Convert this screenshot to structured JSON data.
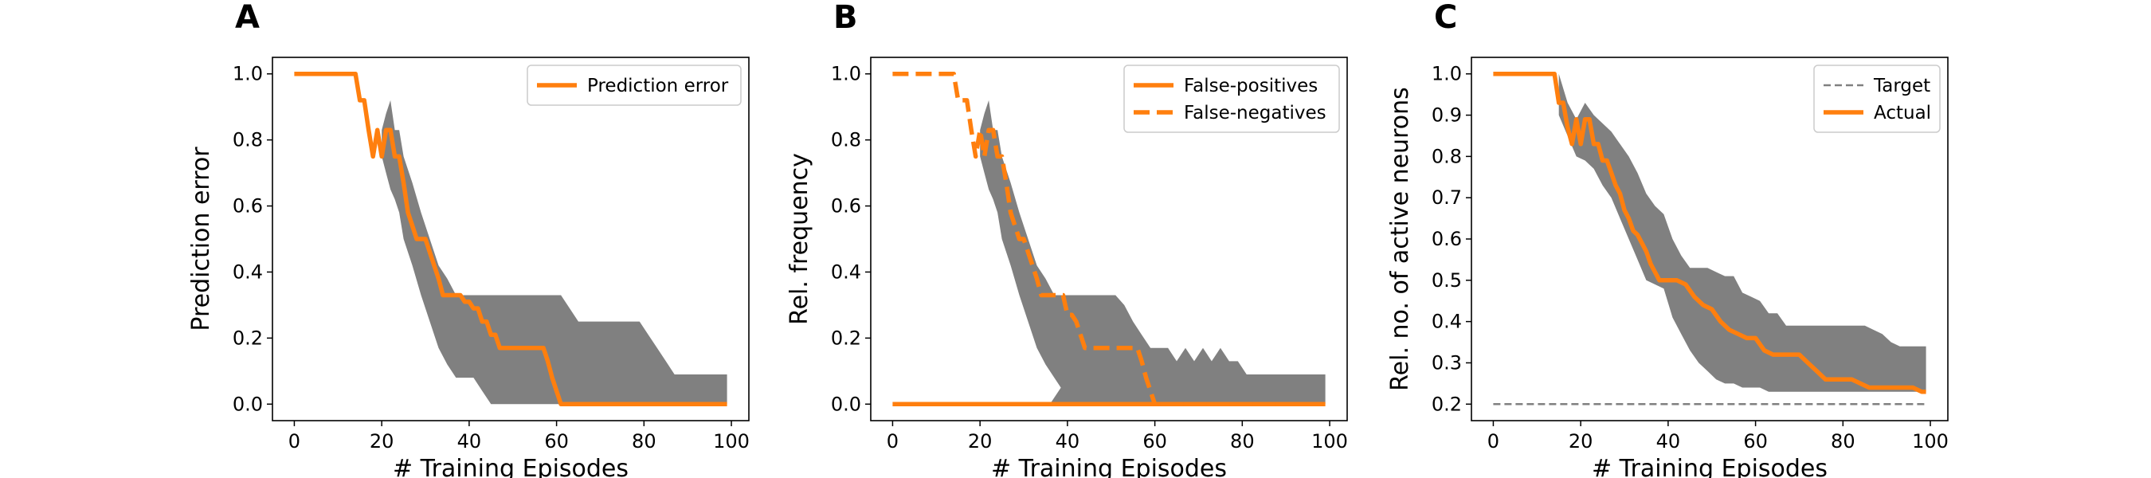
{
  "colors": {
    "orange": "#ff7f0e",
    "band": "#808080",
    "target": "#808080"
  },
  "chart_data": [
    {
      "panel": "A",
      "type": "line",
      "xlabel": "# Training Episodes",
      "ylabel": "Prediction error",
      "xlim": [
        -5,
        104
      ],
      "ylim": [
        -0.05,
        1.05
      ],
      "xticks": [
        0,
        20,
        40,
        60,
        80,
        100
      ],
      "xtick_labels": [
        "0",
        "20",
        "40",
        "60",
        "80",
        "100"
      ],
      "yticks": [
        0.0,
        0.2,
        0.4,
        0.6,
        0.8,
        1.0
      ],
      "ytick_labels": [
        "0.0",
        "0.2",
        "0.4",
        "0.6",
        "0.8",
        "1.0"
      ],
      "legend": {
        "position": "top-right"
      },
      "series": [
        {
          "name": "Prediction error",
          "style": "solid",
          "x": [
            0,
            14,
            15,
            16,
            17,
            18,
            19,
            20,
            21,
            22,
            23,
            24,
            25,
            26,
            27,
            28,
            29,
            30,
            31,
            32,
            33,
            34,
            35,
            36,
            37,
            38,
            39,
            40,
            41,
            42,
            43,
            44,
            45,
            46,
            47,
            48,
            49,
            50,
            51,
            52,
            53,
            54,
            55,
            56,
            57,
            58,
            59,
            60,
            61,
            62,
            63,
            70,
            80,
            90,
            99
          ],
          "y": [
            1.0,
            1.0,
            0.92,
            0.92,
            0.83,
            0.75,
            0.83,
            0.75,
            0.83,
            0.83,
            0.75,
            0.75,
            0.67,
            0.58,
            0.54,
            0.5,
            0.5,
            0.5,
            0.46,
            0.42,
            0.38,
            0.33,
            0.33,
            0.33,
            0.33,
            0.33,
            0.31,
            0.31,
            0.29,
            0.29,
            0.25,
            0.25,
            0.21,
            0.21,
            0.17,
            0.17,
            0.17,
            0.17,
            0.17,
            0.17,
            0.17,
            0.17,
            0.17,
            0.17,
            0.17,
            0.13,
            0.08,
            0.04,
            0.0,
            0.0,
            0.0,
            0.0,
            0.0,
            0.0,
            0.0
          ]
        }
      ],
      "band": {
        "x": [
          20,
          21,
          22,
          23,
          24,
          25,
          27,
          29,
          31,
          33,
          35,
          37,
          39,
          41,
          43,
          45,
          47,
          49,
          51,
          53,
          55,
          57,
          59,
          61,
          63,
          65,
          67,
          69,
          71,
          73,
          75,
          77,
          79,
          81,
          83,
          85,
          87,
          89,
          91,
          93,
          95,
          97,
          99
        ],
        "lower": [
          0.75,
          0.7,
          0.65,
          0.62,
          0.58,
          0.5,
          0.42,
          0.33,
          0.25,
          0.17,
          0.12,
          0.08,
          0.08,
          0.08,
          0.04,
          0.0,
          0.0,
          0.0,
          0.0,
          0.0,
          0.0,
          0.0,
          0.0,
          0.0,
          0.0,
          0.0,
          0.0,
          0.0,
          0.0,
          0.0,
          0.0,
          0.0,
          0.0,
          0.0,
          0.0,
          0.0,
          0.0,
          0.0,
          0.0,
          0.0,
          0.0,
          0.0,
          0.0
        ],
        "upper": [
          0.83,
          0.88,
          0.92,
          0.83,
          0.83,
          0.75,
          0.67,
          0.58,
          0.5,
          0.42,
          0.38,
          0.33,
          0.33,
          0.33,
          0.33,
          0.33,
          0.33,
          0.33,
          0.33,
          0.33,
          0.33,
          0.33,
          0.33,
          0.33,
          0.29,
          0.25,
          0.25,
          0.25,
          0.25,
          0.25,
          0.25,
          0.25,
          0.25,
          0.21,
          0.17,
          0.13,
          0.09,
          0.09,
          0.09,
          0.09,
          0.09,
          0.09,
          0.09
        ]
      }
    },
    {
      "panel": "B",
      "type": "line",
      "xlabel": "# Training Episodes",
      "ylabel": "Rel. frequency",
      "xlim": [
        -5,
        104
      ],
      "ylim": [
        -0.05,
        1.05
      ],
      "xticks": [
        0,
        20,
        40,
        60,
        80,
        100
      ],
      "xtick_labels": [
        "0",
        "20",
        "40",
        "60",
        "80",
        "100"
      ],
      "yticks": [
        0.0,
        0.2,
        0.4,
        0.6,
        0.8,
        1.0
      ],
      "ytick_labels": [
        "0.0",
        "0.2",
        "0.4",
        "0.6",
        "0.8",
        "1.0"
      ],
      "legend": {
        "position": "top-right"
      },
      "series": [
        {
          "name": "False-positives",
          "style": "solid",
          "x": [
            0,
            99
          ],
          "y": [
            0.0,
            0.0
          ]
        },
        {
          "name": "False-negatives",
          "style": "dashed",
          "x": [
            0,
            14,
            15,
            16,
            17,
            18,
            19,
            20,
            21,
            22,
            23,
            24,
            25,
            26,
            27,
            28,
            29,
            30,
            31,
            32,
            33,
            34,
            35,
            36,
            37,
            38,
            39,
            40,
            41,
            42,
            43,
            44,
            45,
            46,
            47,
            48,
            49,
            50,
            51,
            52,
            53,
            54,
            55,
            56,
            57,
            58,
            59,
            60,
            70,
            80,
            99
          ],
          "y": [
            1.0,
            1.0,
            0.92,
            0.92,
            0.92,
            0.83,
            0.75,
            0.83,
            0.75,
            0.83,
            0.83,
            0.75,
            0.75,
            0.67,
            0.58,
            0.54,
            0.5,
            0.5,
            0.46,
            0.42,
            0.38,
            0.33,
            0.33,
            0.33,
            0.33,
            0.33,
            0.33,
            0.27,
            0.27,
            0.25,
            0.21,
            0.17,
            0.17,
            0.17,
            0.17,
            0.17,
            0.17,
            0.17,
            0.17,
            0.17,
            0.17,
            0.17,
            0.17,
            0.17,
            0.13,
            0.08,
            0.04,
            0.0,
            0.0,
            0.0,
            0.0
          ]
        }
      ],
      "band": {
        "x": [
          20,
          21,
          22,
          23,
          24,
          25,
          27,
          29,
          31,
          33,
          35,
          37,
          39,
          41,
          43,
          45,
          47,
          49,
          51,
          53,
          55,
          57,
          59,
          61,
          63,
          65,
          67,
          69,
          71,
          73,
          75,
          77,
          79,
          81,
          83,
          85,
          87,
          89,
          91,
          93,
          95,
          97,
          99
        ],
        "lower": [
          0.75,
          0.7,
          0.65,
          0.62,
          0.58,
          0.5,
          0.42,
          0.33,
          0.25,
          0.17,
          0.12,
          0.08,
          0.04,
          0.0,
          0.0,
          0.0,
          0.0,
          0.0,
          0.0,
          0.0,
          0.0,
          0.0,
          0.0,
          0.0,
          0.0,
          0.0,
          0.0,
          0.0,
          0.0,
          0.0,
          0.0,
          0.0,
          0.0,
          0.0,
          0.0,
          0.0,
          0.0,
          0.0,
          0.0,
          0.0,
          0.0,
          0.0,
          0.0
        ],
        "upper": [
          0.83,
          0.88,
          0.92,
          0.83,
          0.83,
          0.75,
          0.67,
          0.58,
          0.5,
          0.42,
          0.38,
          0.33,
          0.33,
          0.33,
          0.33,
          0.33,
          0.33,
          0.33,
          0.33,
          0.3,
          0.25,
          0.21,
          0.17,
          0.17,
          0.17,
          0.13,
          0.17,
          0.13,
          0.17,
          0.13,
          0.17,
          0.13,
          0.13,
          0.09,
          0.09,
          0.09,
          0.09,
          0.09,
          0.09,
          0.09,
          0.09,
          0.09,
          0.09
        ]
      },
      "band_lower_right": {
        "x": [
          36,
          38,
          40,
          42,
          44,
          46,
          48,
          50,
          52,
          54,
          56,
          58,
          60,
          62,
          64,
          66,
          68,
          70,
          72,
          74,
          76,
          78,
          80,
          82,
          84,
          86,
          88,
          90,
          92,
          94,
          96,
          98,
          99
        ],
        "upper": [
          0.0,
          0.04,
          0.08,
          0.1,
          0.13,
          0.17,
          0.17,
          0.17,
          0.13,
          0.13,
          0.08,
          0.04,
          0.04,
          0.0,
          0.0,
          0.0,
          0.0,
          0.0,
          0.0,
          0.0,
          0.0,
          0.0,
          0.0,
          0.0,
          0.0,
          0.0,
          0.0,
          0.0,
          0.0,
          0.0,
          0.0,
          0.0,
          0.0
        ]
      }
    },
    {
      "panel": "C",
      "type": "line",
      "xlabel": "# Training Episodes",
      "ylabel": "Rel. no. of active neurons",
      "xlim": [
        -5,
        104
      ],
      "ylim": [
        0.16,
        1.04
      ],
      "xticks": [
        0,
        20,
        40,
        60,
        80,
        100
      ],
      "xtick_labels": [
        "0",
        "20",
        "40",
        "60",
        "80",
        "100"
      ],
      "yticks": [
        0.2,
        0.3,
        0.4,
        0.5,
        0.6,
        0.7,
        0.8,
        0.9,
        1.0
      ],
      "ytick_labels": [
        "0.2",
        "0.3",
        "0.4",
        "0.5",
        "0.6",
        "0.7",
        "0.8",
        "0.9",
        "1.0"
      ],
      "legend": {
        "position": "top-right"
      },
      "series": [
        {
          "name": "Target",
          "style": "dashed-gray",
          "x": [
            0,
            99
          ],
          "y": [
            0.2,
            0.2
          ]
        },
        {
          "name": "Actual",
          "style": "solid",
          "x": [
            0,
            14,
            15,
            16,
            17,
            18,
            19,
            20,
            21,
            22,
            23,
            24,
            25,
            26,
            27,
            28,
            29,
            30,
            31,
            32,
            33,
            34,
            35,
            36,
            37,
            38,
            39,
            40,
            42,
            44,
            46,
            48,
            50,
            52,
            54,
            56,
            58,
            60,
            62,
            64,
            66,
            68,
            70,
            72,
            74,
            76,
            78,
            80,
            82,
            84,
            86,
            88,
            90,
            92,
            94,
            96,
            98,
            99
          ],
          "y": [
            1.0,
            1.0,
            0.93,
            0.93,
            0.87,
            0.83,
            0.89,
            0.83,
            0.89,
            0.89,
            0.83,
            0.83,
            0.79,
            0.79,
            0.76,
            0.73,
            0.71,
            0.67,
            0.65,
            0.62,
            0.61,
            0.59,
            0.57,
            0.54,
            0.52,
            0.5,
            0.5,
            0.5,
            0.5,
            0.49,
            0.46,
            0.44,
            0.43,
            0.4,
            0.38,
            0.37,
            0.36,
            0.36,
            0.33,
            0.32,
            0.32,
            0.32,
            0.32,
            0.3,
            0.28,
            0.26,
            0.26,
            0.26,
            0.26,
            0.25,
            0.24,
            0.24,
            0.24,
            0.24,
            0.24,
            0.24,
            0.23,
            0.23
          ]
        }
      ],
      "band": {
        "x": [
          15,
          17,
          19,
          21,
          23,
          25,
          27,
          29,
          31,
          33,
          35,
          37,
          39,
          41,
          43,
          45,
          47,
          49,
          51,
          53,
          55,
          57,
          59,
          61,
          63,
          65,
          67,
          69,
          71,
          73,
          75,
          77,
          79,
          81,
          83,
          85,
          87,
          89,
          91,
          93,
          95,
          97,
          99
        ],
        "lower": [
          0.9,
          0.85,
          0.8,
          0.79,
          0.77,
          0.73,
          0.7,
          0.65,
          0.6,
          0.55,
          0.5,
          0.49,
          0.48,
          0.41,
          0.37,
          0.33,
          0.3,
          0.28,
          0.26,
          0.25,
          0.25,
          0.24,
          0.24,
          0.24,
          0.23,
          0.23,
          0.23,
          0.23,
          0.23,
          0.23,
          0.23,
          0.23,
          0.23,
          0.23,
          0.23,
          0.23,
          0.23,
          0.23,
          0.23,
          0.23,
          0.23,
          0.23,
          0.23
        ],
        "upper": [
          1.0,
          0.93,
          0.89,
          0.93,
          0.9,
          0.88,
          0.86,
          0.83,
          0.8,
          0.76,
          0.71,
          0.68,
          0.66,
          0.6,
          0.56,
          0.53,
          0.53,
          0.53,
          0.52,
          0.51,
          0.51,
          0.47,
          0.46,
          0.45,
          0.42,
          0.42,
          0.39,
          0.39,
          0.39,
          0.39,
          0.39,
          0.39,
          0.39,
          0.39,
          0.39,
          0.39,
          0.38,
          0.37,
          0.35,
          0.34,
          0.34,
          0.34,
          0.34
        ]
      }
    }
  ]
}
